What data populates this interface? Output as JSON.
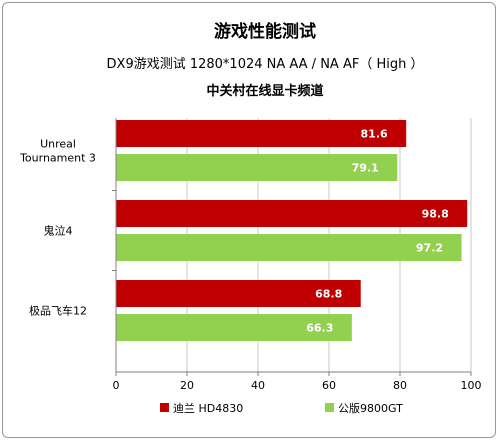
{
  "chart_data": {
    "type": "bar",
    "orientation": "horizontal",
    "title": "游戏性能测试",
    "subtitle": "DX9游戏测试 1280*1024 NA AA / NA AF（ High ）",
    "source": "中关村在线显卡频道",
    "categories": [
      "Unreal Tournament 3",
      "鬼泣4",
      "极品飞车12"
    ],
    "category_lines": [
      [
        "Unreal",
        "Tournament 3"
      ],
      [
        "鬼泣4"
      ],
      [
        "极品飞车12"
      ]
    ],
    "series": [
      {
        "name": "迪兰 HD4830",
        "color": "#c00000",
        "values": [
          81.6,
          98.8,
          68.8
        ]
      },
      {
        "name": "公版9800GT",
        "color": "#92d050",
        "values": [
          79.1,
          97.2,
          66.3
        ]
      }
    ],
    "xlim": [
      0,
      100
    ],
    "xticks": [
      0,
      20,
      40,
      60,
      80,
      100
    ],
    "grid": true,
    "legend": "bottom"
  }
}
